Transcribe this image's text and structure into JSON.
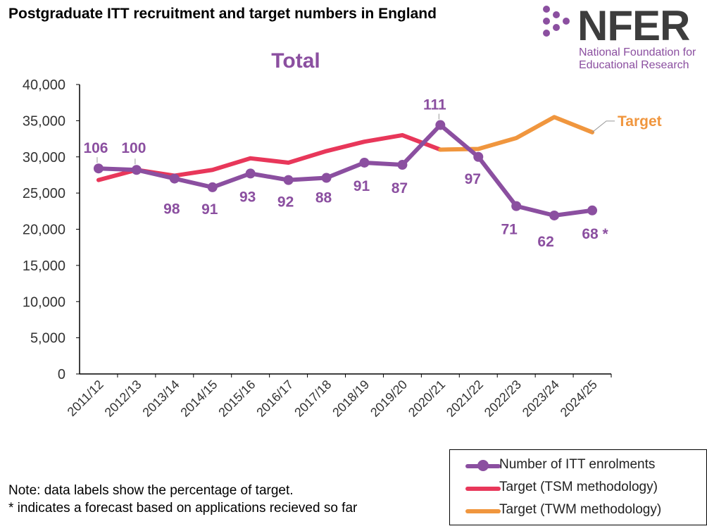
{
  "page_title": "Postgraduate ITT recruitment and target numbers in England",
  "logo": {
    "word": "NFER",
    "subtitle_line1": "National Foundation for",
    "subtitle_line2": "Educational Research"
  },
  "colors": {
    "enrolments": "#8b4fa0",
    "tsm": "#e8375a",
    "twm": "#f0963e",
    "logo_purple": "#8b4fa0"
  },
  "chart_data": {
    "type": "line",
    "title": "Total",
    "categories": [
      "2011/12",
      "2012/13",
      "2013/14",
      "2014/15",
      "2015/16",
      "2016/17",
      "2017/18",
      "2018/19",
      "2019/20",
      "2020/21",
      "2021/22",
      "2022/23",
      "2023/24",
      "2024/25"
    ],
    "ylim": [
      0,
      40000
    ],
    "yticks": [
      0,
      5000,
      10000,
      15000,
      20000,
      25000,
      30000,
      35000,
      40000
    ],
    "ytick_labels": [
      "0",
      "5,000",
      "10,000",
      "15,000",
      "20,000",
      "25,000",
      "30,000",
      "35,000",
      "40,000"
    ],
    "series": [
      {
        "name": "Number of ITT enrolments",
        "key": "enrolments",
        "values": [
          28400,
          28200,
          27000,
          25800,
          27700,
          26800,
          27100,
          29200,
          28900,
          34400,
          30000,
          23200,
          21900,
          22600
        ],
        "markers": true,
        "data_labels": [
          "106",
          "100",
          "98",
          "91",
          "93",
          "92",
          "88",
          "91",
          "87",
          "111",
          "97",
          "71",
          "62",
          "68 *"
        ]
      },
      {
        "name": "Target (TSM methodology)",
        "key": "tsm",
        "values": [
          26800,
          28200,
          27400,
          28200,
          29800,
          29200,
          30800,
          32100,
          33000,
          31000,
          null,
          null,
          null,
          null
        ],
        "markers": false
      },
      {
        "name": "Target (TWM methodology)",
        "key": "twm",
        "values": [
          null,
          null,
          null,
          null,
          null,
          null,
          null,
          null,
          null,
          31000,
          31100,
          32600,
          35500,
          33400
        ],
        "markers": false
      }
    ],
    "annotation": "Target",
    "legend_position": "bottom-right"
  },
  "notes": {
    "line1": "Note: data labels show the percentage of target.",
    "line2": "* indicates a forecast based on applications recieved so far"
  }
}
